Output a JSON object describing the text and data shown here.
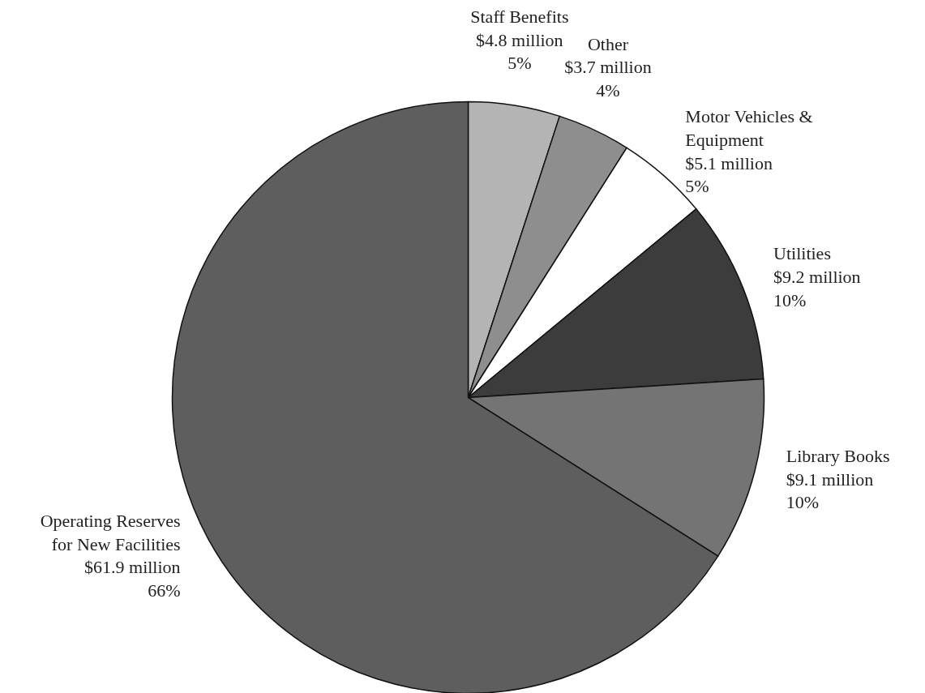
{
  "chart_data": {
    "type": "pie",
    "categories": [
      "Staff Benefits",
      "Other",
      "Motor Vehicles & Equipment",
      "Utilities",
      "Library Books",
      "Operating Reserves for New Facilities"
    ],
    "values": [
      5,
      4,
      5,
      10,
      10,
      66
    ],
    "colors": [
      "#b4b4b4",
      "#8e8e8e",
      "#ffffff",
      "#3c3c3c",
      "#747474",
      "#5e5e5e"
    ],
    "value_labels": [
      "$4.8 million\n5%",
      "$3.7 million\n4%",
      "$5.1 million\n5%",
      "$9.2 million\n10%",
      "$9.1 million\n10%",
      "$61.9 million\n66%"
    ]
  }
}
